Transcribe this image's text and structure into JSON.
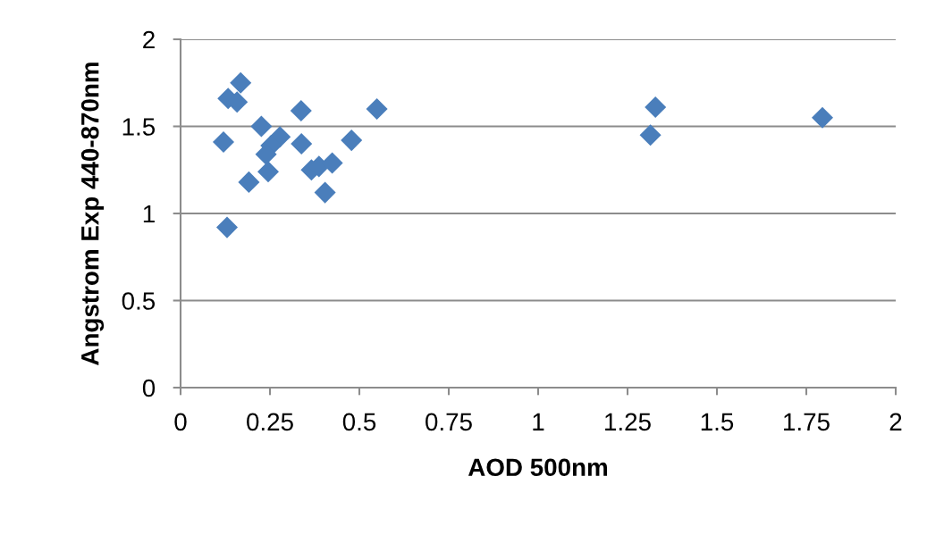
{
  "chart_data": {
    "type": "scatter",
    "xlabel": "AOD 500nm",
    "ylabel": "Angstrom Exp 440-870nm",
    "marker": "diamond",
    "grid": "y",
    "xlim": [
      0,
      2
    ],
    "xticks": [
      0,
      0.25,
      0.5,
      0.75,
      1,
      1.25,
      1.5,
      1.75,
      2
    ],
    "ylim": [
      0,
      2
    ],
    "yticks": [
      0,
      0.5,
      1,
      1.5,
      2
    ],
    "series": [
      {
        "color": "#4a7ebb",
        "x": [
          0.168,
          0.133,
          0.158,
          0.337,
          0.549,
          0.226,
          0.12,
          0.278,
          0.253,
          0.338,
          0.478,
          0.239,
          0.245,
          0.366,
          0.387,
          0.424,
          0.191,
          0.404,
          0.13,
          1.328,
          1.314,
          1.795
        ],
        "values": [
          1.75,
          1.66,
          1.64,
          1.59,
          1.6,
          1.5,
          1.41,
          1.44,
          1.39,
          1.4,
          1.42,
          1.34,
          1.24,
          1.25,
          1.27,
          1.29,
          1.18,
          1.12,
          0.92,
          1.61,
          1.45,
          1.55
        ]
      }
    ]
  }
}
